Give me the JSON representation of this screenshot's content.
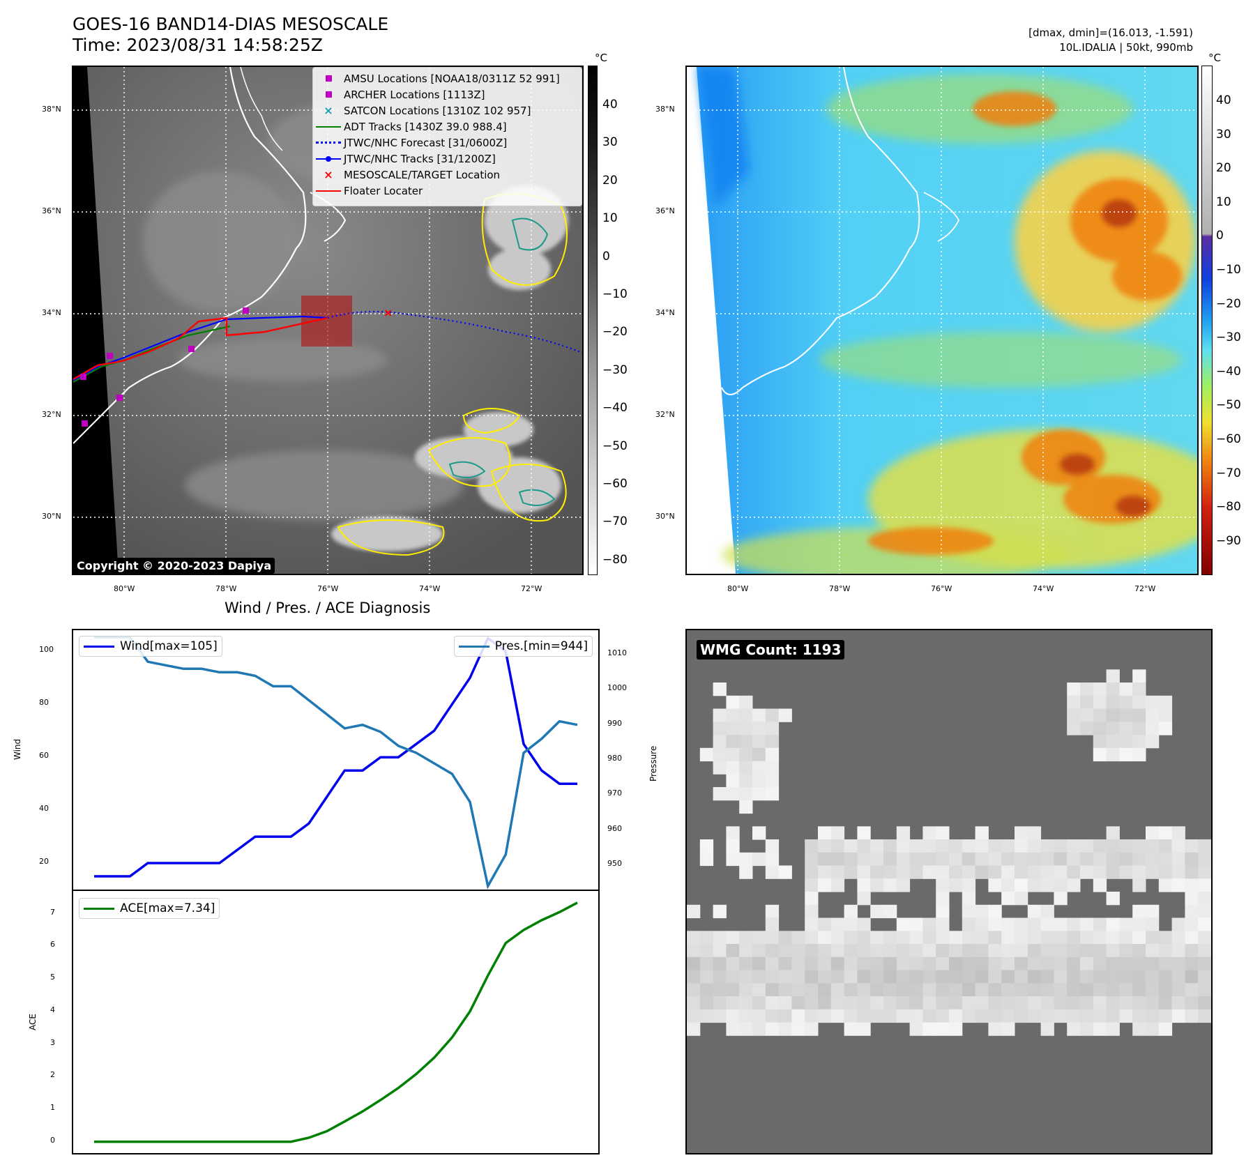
{
  "header": {
    "title": "GOES-16 BAND14-DIAS MESOSCALE",
    "time": "Time: 2023/08/31 14:58:25Z",
    "dmax_dmin": "[dmax, dmin]=(16.013, -1.591)",
    "storm": "10L.IDALIA | 50kt, 990mb"
  },
  "map": {
    "lat_labels": [
      "38°N",
      "36°N",
      "34°N",
      "32°N",
      "30°N"
    ],
    "lon_labels": [
      "80°W",
      "78°W",
      "76°W",
      "74°W",
      "72°W"
    ],
    "copyright": "Copyright © 2020-2023 Dapiya",
    "legend": [
      {
        "label": "AMSU Locations [NOAA18/0311Z 52 991]",
        "color": "#c000c0",
        "symbol": "square"
      },
      {
        "label": "ARCHER Locations [1113Z]",
        "color": "#c000c0",
        "symbol": "square"
      },
      {
        "label": "SATCON Locations [1310Z 102 957]",
        "color": "#17a0b0",
        "symbol": "x"
      },
      {
        "label": "ADT Tracks [1430Z 39.0 988.4]",
        "color": "#008000",
        "symbol": "line"
      },
      {
        "label": "JTWC/NHC Forecast [31/0600Z]",
        "color": "#0000ff",
        "symbol": "dotted"
      },
      {
        "label": "JTWC/NHC Tracks [31/1200Z]",
        "color": "#0000ff",
        "symbol": "line-dot"
      },
      {
        "label": "MESOSCALE/TARGET Location",
        "color": "#ff0000",
        "symbol": "x"
      },
      {
        "label": "Floater Locater",
        "color": "#ff0000",
        "symbol": "line"
      }
    ]
  },
  "colorbar_gray": {
    "unit": "°C",
    "ticks": [
      "40",
      "30",
      "20",
      "10",
      "0",
      "−10",
      "−20",
      "−30",
      "−40",
      "−50",
      "−60",
      "−70",
      "−80"
    ]
  },
  "colorbar_color": {
    "unit": "°C",
    "ticks": [
      "40",
      "30",
      "20",
      "10",
      "0",
      "−10",
      "−20",
      "−30",
      "−40",
      "−50",
      "−60",
      "−70",
      "−80",
      "−90"
    ]
  },
  "wmg": {
    "count_label": "WMG Count: 1193"
  },
  "chart_data": [
    {
      "type": "line",
      "title": "Wind / Pres. / ACE Diagnosis",
      "ylabel": "Wind",
      "y2label": "Pressure",
      "ylim": [
        10,
        108
      ],
      "y2lim": [
        943,
        1017
      ],
      "yticks": [
        20,
        40,
        60,
        80,
        100
      ],
      "y2ticks": [
        950,
        960,
        970,
        980,
        990,
        1000,
        1010
      ],
      "series": [
        {
          "name": "Wind[max=105]",
          "color": "#0000ee",
          "axis": "left",
          "values": [
            15,
            15,
            15,
            20,
            20,
            20,
            20,
            20,
            25,
            30,
            30,
            30,
            35,
            45,
            55,
            55,
            60,
            60,
            65,
            70,
            80,
            90,
            105,
            100,
            65,
            55,
            50,
            50
          ]
        },
        {
          "name": "Pres.[min=944]",
          "color": "#1f77b4",
          "axis": "right",
          "values": [
            1015,
            1015,
            1015,
            1008,
            1007,
            1006,
            1006,
            1005,
            1005,
            1004,
            1001,
            1001,
            997,
            993,
            989,
            990,
            988,
            984,
            982,
            979,
            976,
            968,
            944,
            953,
            982,
            986,
            991,
            990
          ]
        }
      ]
    },
    {
      "type": "line",
      "ylabel": "ACE",
      "ylim": [
        -0.35,
        7.7
      ],
      "yticks": [
        0,
        1,
        2,
        3,
        4,
        5,
        6,
        7
      ],
      "series": [
        {
          "name": "ACE[max=7.34]",
          "color": "#008000",
          "values": [
            0,
            0,
            0,
            0,
            0,
            0,
            0,
            0,
            0,
            0,
            0,
            0,
            0.12,
            0.32,
            0.62,
            0.93,
            1.28,
            1.65,
            2.08,
            2.58,
            3.2,
            4.0,
            5.1,
            6.1,
            6.5,
            6.8,
            7.05,
            7.34
          ]
        }
      ]
    }
  ]
}
